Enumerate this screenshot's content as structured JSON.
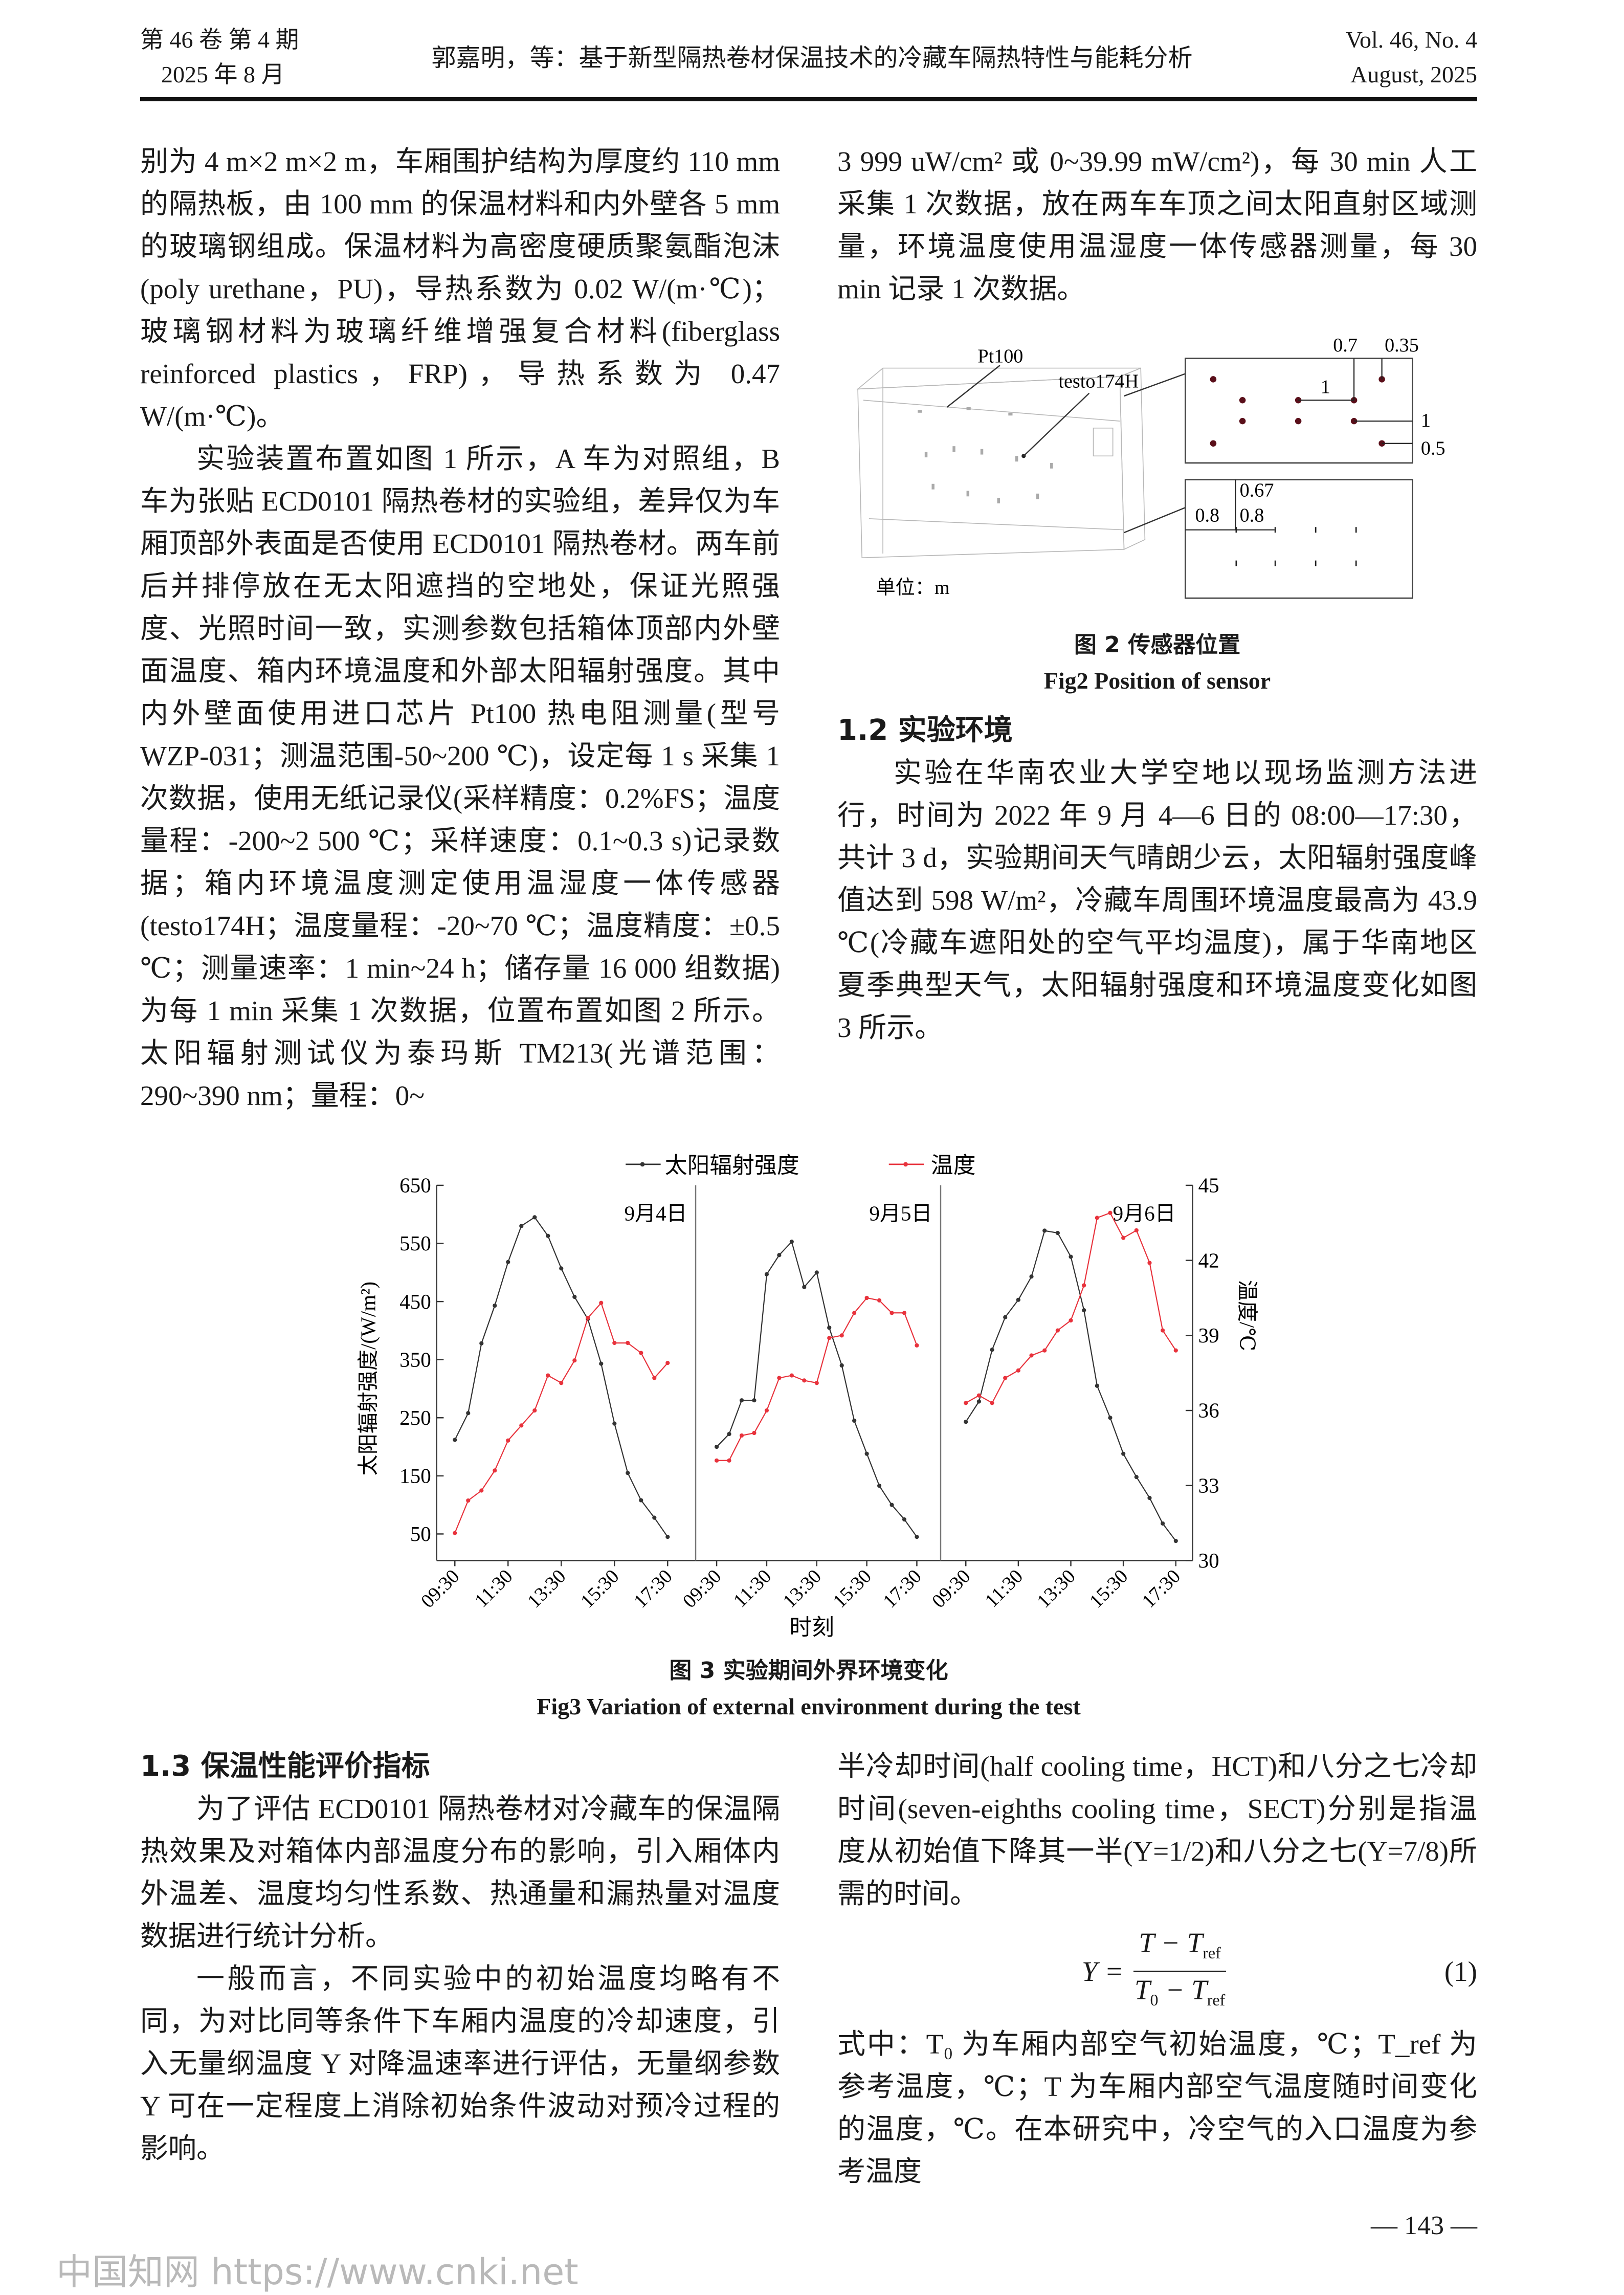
{
  "header": {
    "volume_cn": "第 46 卷 第 4 期",
    "date_cn": "2025 年 8 月",
    "running_title": "郭嘉明，等：基于新型隔热卷材保温技术的冷藏车隔热特性与能耗分析",
    "volume_en": "Vol. 46, No. 4",
    "date_en": "August, 2025"
  },
  "left_column": {
    "p1": "别为 4 m×2 m×2 m，车厢围护结构为厚度约 110 mm 的隔热板，由 100 mm 的保温材料和内外壁各 5 mm 的玻璃钢组成。保温材料为高密度硬质聚氨酯泡沫(poly urethane，PU)，导热系数为 0.02 W/(m·℃)；玻璃钢材料为玻璃纤维增强复合材料(fiberglass reinforced plastics，FRP)，导热系数为 0.47 W/(m·℃)。",
    "p2": "实验装置布置如图 1 所示，A 车为对照组，B 车为张贴 ECD0101 隔热卷材的实验组，差异仅为车厢顶部外表面是否使用 ECD0101 隔热卷材。两车前后并排停放在无太阳遮挡的空地处，保证光照强度、光照时间一致，实测参数包括箱体顶部内外壁面温度、箱内环境温度和外部太阳辐射强度。其中内外壁面使用进口芯片 Pt100 热电阻测量(型号 WZP-031；测温范围-50~200 ℃)，设定每 1 s 采集 1 次数据，使用无纸记录仪(采样精度：0.2%FS；温度量程：-200~2 500 ℃；采样速度：0.1~0.3 s)记录数据；箱内环境温度测定使用温湿度一体传感器(testo174H；温度量程：-20~70 ℃；温度精度：±0.5 ℃；测量速率：1 min~24 h；储存量 16 000 组数据)为每 1 min 采集 1 次数据，位置布置如图 2 所示。太阳辐射测试仪为泰玛斯 TM213(光谱范围：290~390 nm；量程：0~"
  },
  "right_column": {
    "p1": "3 999 uW/cm² 或 0~39.99 mW/cm²)，每 30 min 人工采集 1 次数据，放在两车车顶之间太阳直射区域测量，环境温度使用温湿度一体传感器测量，每 30 min 记录 1 次数据。"
  },
  "figure2": {
    "labels": {
      "pt100": "Pt100",
      "testo": "testo174H",
      "unit": "单位：m"
    },
    "dims_top": [
      "0.7",
      "0.35",
      "1",
      "1",
      "0.5"
    ],
    "dims_bottom": [
      "0.67",
      "0.8",
      "0.8"
    ],
    "caption_cn": "图 2 传感器位置",
    "caption_en": "Fig2 Position of sensor",
    "sensor_color": "#5a0f1a"
  },
  "section_1_2": {
    "heading": "1.2 实验环境",
    "p1": "实验在华南农业大学空地以现场监测方法进行，时间为 2022 年 9 月 4—6 日的 08:00—17:30，共计 3 d，实验期间天气晴朗少云，太阳辐射强度峰值达到 598 W/m²，冷藏车周围环境温度最高为 43.9 ℃(冷藏车遮阳处的空气平均温度)，属于华南地区夏季典型天气，太阳辐射强度和环境温度变化如图 3 所示。"
  },
  "chart_data": {
    "type": "line",
    "title": "",
    "xlabel": "时刻",
    "ylabel": "太阳辐射强度/(W/m²)",
    "y2label": "温度/℃",
    "ylim": [
      50,
      650
    ],
    "yticks": [
      50,
      150,
      250,
      350,
      450,
      550,
      650
    ],
    "y2lim": [
      30,
      45
    ],
    "y2ticks": [
      30,
      33,
      36,
      39,
      42,
      45
    ],
    "xticks": [
      "09:30",
      "11:30",
      "13:30",
      "15:30",
      "17:30"
    ],
    "x": [
      "09:30",
      "10:00",
      "10:30",
      "11:00",
      "11:30",
      "12:00",
      "12:30",
      "13:00",
      "13:30",
      "14:00",
      "14:30",
      "15:00",
      "15:30",
      "16:00",
      "16:30",
      "17:00",
      "17:30"
    ],
    "legend_position": "top",
    "grid": false,
    "panels": [
      {
        "label": "9月4日",
        "radiation": [
          212,
          258,
          378,
          443,
          518,
          580,
          595,
          563,
          507,
          458,
          420,
          343,
          240,
          155,
          108,
          78,
          45
        ],
        "temperature": [
          31.1,
          32.4,
          32.8,
          33.6,
          34.8,
          35.4,
          36.0,
          37.4,
          37.1,
          38.0,
          39.7,
          40.3,
          38.7,
          38.7,
          38.3,
          37.3,
          37.9
        ]
      },
      {
        "label": "9月5日",
        "radiation": [
          200,
          222,
          280,
          280,
          497,
          530,
          553,
          475,
          500,
          405,
          340,
          245,
          188,
          133,
          100,
          75,
          45
        ],
        "temperature": [
          34.0,
          34.0,
          35.0,
          35.1,
          36.0,
          37.3,
          37.4,
          37.2,
          37.1,
          38.9,
          39.0,
          39.9,
          40.5,
          40.4,
          39.9,
          39.9,
          38.6
        ]
      },
      {
        "label": "9月6日",
        "radiation": [
          243,
          278,
          367,
          423,
          453,
          493,
          572,
          568,
          527,
          435,
          305,
          250,
          188,
          148,
          112,
          68,
          38
        ],
        "temperature": [
          36.3,
          36.6,
          36.3,
          37.3,
          37.6,
          38.2,
          38.4,
          39.2,
          39.6,
          41.0,
          43.7,
          43.9,
          42.9,
          43.2,
          41.9,
          39.2,
          38.4
        ]
      }
    ],
    "series": [
      {
        "name": "太阳辐射强度",
        "color": "#333333"
      },
      {
        "name": "温度",
        "color": "#e8323c"
      }
    ],
    "caption_cn": "图 3 实验期间外界环境变化",
    "caption_en": "Fig3 Variation of external environment during the test"
  },
  "section_1_3": {
    "heading": "1.3 保温性能评价指标",
    "p1": "为了评估 ECD0101 隔热卷材对冷藏车的保温隔热效果及对箱体内部温度分布的影响，引入厢体内外温差、温度均匀性系数、热通量和漏热量对温度数据进行统计分析。",
    "p2": "一般而言，不同实验中的初始温度均略有不同，为对比同等条件下车厢内温度的冷却速度，引入无量纲温度 Y 对降温速率进行评估，无量纲参数 Y 可在一定程度上消除初始条件波动对预冷过程的影响。",
    "p3": "半冷却时间(half cooling time，HCT)和八分之七冷却时间(seven-eighths cooling time，SECT)分别是指温度从初始值下降其一半(Y=1/2)和八分之七(Y=7/8)所需的时间。",
    "equation": {
      "lhs": "Y =",
      "numerator": "T − T",
      "num_sub": "ref",
      "denominator": "T",
      "den_sub0": "0",
      "den_mid": " − T",
      "den_sub": "ref",
      "number": "(1)"
    },
    "p4": "式中：T₀ 为车厢内部空气初始温度，℃；T_ref 为参考温度，℃；T 为车厢内部空气温度随时间变化的温度，℃。在本研究中，冷空气的入口温度为参考温度"
  },
  "footer": {
    "page_number": "— 143 —",
    "watermark": "中国知网  https://www.cnki.net"
  }
}
